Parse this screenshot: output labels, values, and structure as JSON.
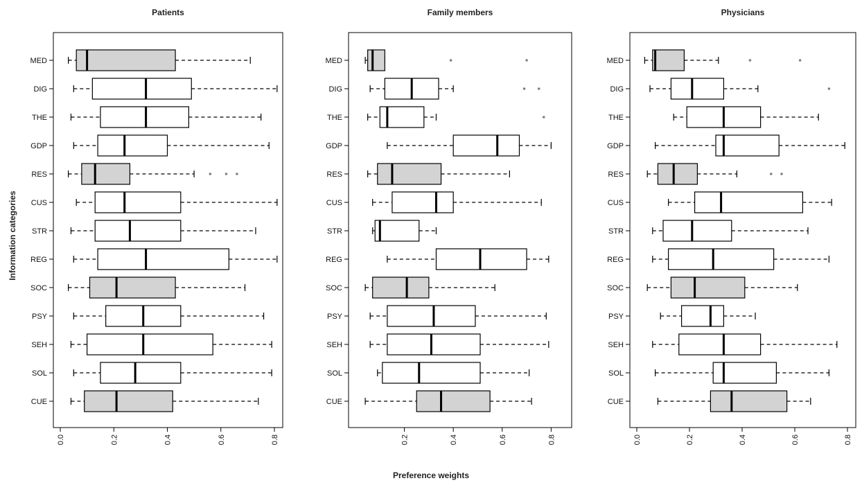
{
  "chart_data": {
    "type": "boxplot",
    "orientation": "horizontal",
    "ylabel": "Information categories",
    "xlabel": "Preference weights",
    "categories": [
      "MED",
      "DIG",
      "THE",
      "GDP",
      "RES",
      "CUS",
      "STR",
      "REG",
      "SOC",
      "PSY",
      "SEH",
      "SOL",
      "CUE"
    ],
    "shaded_categories": [
      "MED",
      "RES",
      "SOC",
      "CUE"
    ],
    "colors": {
      "shaded_fill": "#d3d3d3",
      "open_fill": "#ffffff",
      "stroke": "#000000",
      "outlier": "#808080"
    },
    "panels": [
      {
        "title": "Patients",
        "xlim": [
          0.0,
          0.8
        ],
        "ticks": [
          "0.0",
          "0.2",
          "0.4",
          "0.6",
          "0.8"
        ],
        "tick_values": [
          0,
          0.2,
          0.4,
          0.6,
          0.8
        ],
        "boxes": [
          {
            "cat": "MED",
            "min": 0.03,
            "q1": 0.06,
            "median": 0.1,
            "q3": 0.43,
            "max": 0.71,
            "outliers": [],
            "shaded": true
          },
          {
            "cat": "DIG",
            "min": 0.05,
            "q1": 0.12,
            "median": 0.32,
            "q3": 0.49,
            "max": 0.81,
            "outliers": [],
            "shaded": false
          },
          {
            "cat": "THE",
            "min": 0.04,
            "q1": 0.15,
            "median": 0.32,
            "q3": 0.48,
            "max": 0.75,
            "outliers": [],
            "shaded": false
          },
          {
            "cat": "GDP",
            "min": 0.05,
            "q1": 0.14,
            "median": 0.24,
            "q3": 0.4,
            "max": 0.78,
            "outliers": [],
            "shaded": false
          },
          {
            "cat": "RES",
            "min": 0.03,
            "q1": 0.08,
            "median": 0.13,
            "q3": 0.26,
            "max": 0.5,
            "outliers": [
              0.56,
              0.62,
              0.66
            ],
            "shaded": true
          },
          {
            "cat": "CUS",
            "min": 0.06,
            "q1": 0.13,
            "median": 0.24,
            "q3": 0.45,
            "max": 0.81,
            "outliers": [],
            "shaded": false
          },
          {
            "cat": "STR",
            "min": 0.04,
            "q1": 0.13,
            "median": 0.26,
            "q3": 0.45,
            "max": 0.73,
            "outliers": [],
            "shaded": false
          },
          {
            "cat": "REG",
            "min": 0.05,
            "q1": 0.14,
            "median": 0.32,
            "q3": 0.63,
            "max": 0.81,
            "outliers": [],
            "shaded": false
          },
          {
            "cat": "SOC",
            "min": 0.03,
            "q1": 0.11,
            "median": 0.21,
            "q3": 0.43,
            "max": 0.69,
            "outliers": [],
            "shaded": true
          },
          {
            "cat": "PSY",
            "min": 0.05,
            "q1": 0.17,
            "median": 0.31,
            "q3": 0.45,
            "max": 0.76,
            "outliers": [],
            "shaded": false
          },
          {
            "cat": "SEH",
            "min": 0.04,
            "q1": 0.1,
            "median": 0.31,
            "q3": 0.57,
            "max": 0.79,
            "outliers": [],
            "shaded": false
          },
          {
            "cat": "SOL",
            "min": 0.05,
            "q1": 0.15,
            "median": 0.28,
            "q3": 0.45,
            "max": 0.79,
            "outliers": [],
            "shaded": false
          },
          {
            "cat": "CUE",
            "min": 0.04,
            "q1": 0.09,
            "median": 0.21,
            "q3": 0.42,
            "max": 0.74,
            "outliers": [],
            "shaded": true
          }
        ]
      },
      {
        "title": "Family members",
        "xlim": [
          0.0,
          0.85
        ],
        "ticks": [
          "0.2",
          "0.4",
          "0.6",
          "0.8"
        ],
        "tick_values": [
          0.2,
          0.4,
          0.6,
          0.8
        ],
        "boxes": [
          {
            "cat": "MED",
            "min": 0.04,
            "q1": 0.05,
            "median": 0.07,
            "q3": 0.12,
            "max": 0.12,
            "outliers": [
              0.39,
              0.7
            ],
            "shaded": true
          },
          {
            "cat": "DIG",
            "min": 0.06,
            "q1": 0.12,
            "median": 0.23,
            "q3": 0.34,
            "max": 0.4,
            "outliers": [
              0.69,
              0.75
            ],
            "shaded": false
          },
          {
            "cat": "THE",
            "min": 0.05,
            "q1": 0.1,
            "median": 0.13,
            "q3": 0.28,
            "max": 0.33,
            "outliers": [
              0.77
            ],
            "shaded": false
          },
          {
            "cat": "GDP",
            "min": 0.13,
            "q1": 0.4,
            "median": 0.58,
            "q3": 0.67,
            "max": 0.8,
            "outliers": [],
            "shaded": false
          },
          {
            "cat": "RES",
            "min": 0.05,
            "q1": 0.09,
            "median": 0.15,
            "q3": 0.35,
            "max": 0.63,
            "outliers": [],
            "shaded": true
          },
          {
            "cat": "CUS",
            "min": 0.07,
            "q1": 0.15,
            "median": 0.33,
            "q3": 0.4,
            "max": 0.76,
            "outliers": [],
            "shaded": false
          },
          {
            "cat": "STR",
            "min": 0.07,
            "q1": 0.08,
            "median": 0.1,
            "q3": 0.26,
            "max": 0.33,
            "outliers": [],
            "shaded": false
          },
          {
            "cat": "REG",
            "min": 0.13,
            "q1": 0.33,
            "median": 0.51,
            "q3": 0.7,
            "max": 0.79,
            "outliers": [],
            "shaded": false
          },
          {
            "cat": "SOC",
            "min": 0.04,
            "q1": 0.07,
            "median": 0.21,
            "q3": 0.3,
            "max": 0.57,
            "outliers": [],
            "shaded": true
          },
          {
            "cat": "PSY",
            "min": 0.06,
            "q1": 0.13,
            "median": 0.32,
            "q3": 0.49,
            "max": 0.78,
            "outliers": [],
            "shaded": false
          },
          {
            "cat": "SEH",
            "min": 0.06,
            "q1": 0.13,
            "median": 0.31,
            "q3": 0.51,
            "max": 0.79,
            "outliers": [],
            "shaded": false
          },
          {
            "cat": "SOL",
            "min": 0.09,
            "q1": 0.11,
            "median": 0.26,
            "q3": 0.51,
            "max": 0.71,
            "outliers": [],
            "shaded": false
          },
          {
            "cat": "CUE",
            "min": 0.04,
            "q1": 0.25,
            "median": 0.35,
            "q3": 0.55,
            "max": 0.72,
            "outliers": [],
            "shaded": true
          }
        ]
      },
      {
        "title": "Physicians",
        "xlim": [
          0.0,
          0.8
        ],
        "ticks": [
          "0.0",
          "0.2",
          "0.4",
          "0.6",
          "0.8"
        ],
        "tick_values": [
          0,
          0.2,
          0.4,
          0.6,
          0.8
        ],
        "boxes": [
          {
            "cat": "MED",
            "min": 0.03,
            "q1": 0.06,
            "median": 0.07,
            "q3": 0.18,
            "max": 0.31,
            "outliers": [
              0.43,
              0.62
            ],
            "shaded": true
          },
          {
            "cat": "DIG",
            "min": 0.05,
            "q1": 0.13,
            "median": 0.21,
            "q3": 0.33,
            "max": 0.46,
            "outliers": [
              0.73
            ],
            "shaded": false
          },
          {
            "cat": "THE",
            "min": 0.14,
            "q1": 0.19,
            "median": 0.33,
            "q3": 0.47,
            "max": 0.69,
            "outliers": [],
            "shaded": false
          },
          {
            "cat": "GDP",
            "min": 0.07,
            "q1": 0.3,
            "median": 0.33,
            "q3": 0.54,
            "max": 0.79,
            "outliers": [],
            "shaded": false
          },
          {
            "cat": "RES",
            "min": 0.04,
            "q1": 0.08,
            "median": 0.14,
            "q3": 0.23,
            "max": 0.38,
            "outliers": [
              0.51,
              0.55
            ],
            "shaded": true
          },
          {
            "cat": "CUS",
            "min": 0.12,
            "q1": 0.22,
            "median": 0.32,
            "q3": 0.63,
            "max": 0.74,
            "outliers": [],
            "shaded": false
          },
          {
            "cat": "STR",
            "min": 0.06,
            "q1": 0.1,
            "median": 0.21,
            "q3": 0.36,
            "max": 0.65,
            "outliers": [],
            "shaded": false
          },
          {
            "cat": "REG",
            "min": 0.06,
            "q1": 0.12,
            "median": 0.29,
            "q3": 0.52,
            "max": 0.73,
            "outliers": [],
            "shaded": false
          },
          {
            "cat": "SOC",
            "min": 0.04,
            "q1": 0.13,
            "median": 0.22,
            "q3": 0.41,
            "max": 0.61,
            "outliers": [],
            "shaded": true
          },
          {
            "cat": "PSY",
            "min": 0.09,
            "q1": 0.17,
            "median": 0.28,
            "q3": 0.33,
            "max": 0.45,
            "outliers": [],
            "shaded": false
          },
          {
            "cat": "SEH",
            "min": 0.06,
            "q1": 0.16,
            "median": 0.33,
            "q3": 0.47,
            "max": 0.76,
            "outliers": [],
            "shaded": false
          },
          {
            "cat": "SOL",
            "min": 0.07,
            "q1": 0.29,
            "median": 0.33,
            "q3": 0.53,
            "max": 0.73,
            "outliers": [],
            "shaded": false
          },
          {
            "cat": "CUE",
            "min": 0.08,
            "q1": 0.28,
            "median": 0.36,
            "q3": 0.57,
            "max": 0.66,
            "outliers": [],
            "shaded": true
          }
        ]
      }
    ]
  }
}
